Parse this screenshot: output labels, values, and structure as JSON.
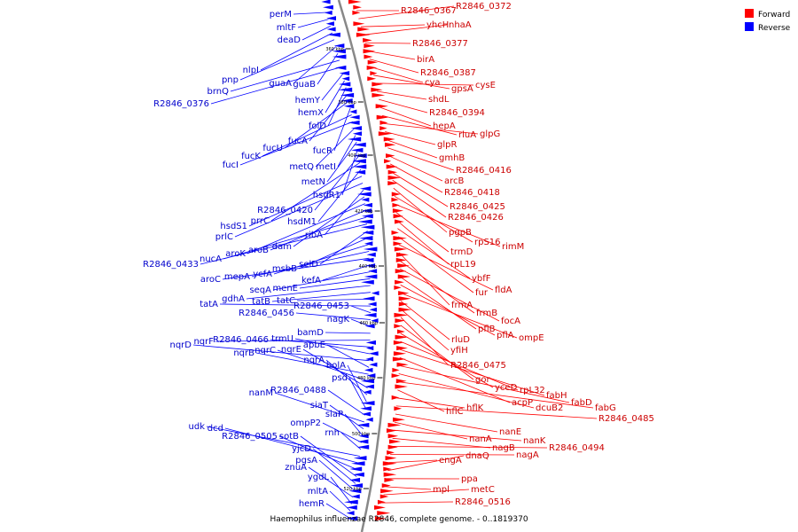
{
  "caption": "Haemophilus influenzae R2846, complete genome. - 0..1819370",
  "legend": [
    {
      "label": "Forward",
      "color": "#ff0000"
    },
    {
      "label": "Reverse",
      "color": "#0000ff"
    }
  ],
  "colors": {
    "forward": "#ff0000",
    "reverse": "#0000ff",
    "forward_text": "#cc0000",
    "reverse_text": "#0000cc",
    "backbone": "#888888"
  },
  "ticks": [
    "360 kbp",
    "380 kbp",
    "400 kbp",
    "420 kbp",
    "440 kbp",
    "460 kbp",
    "480 kbp",
    "500 kbp",
    "520 kbp"
  ],
  "forward_genes": [
    "R2846_0367",
    "R2846_0372",
    "yhcH",
    "nhaA",
    "R2846_0377",
    "birA",
    "R2846_0387",
    "cya",
    "gpsA",
    "cysE",
    "shdL",
    "R2846_0394",
    "hepA",
    "rluA",
    "glpG",
    "glpR",
    "gmhB",
    "R2846_0416",
    "arcB",
    "R2846_0418",
    "R2846_0425",
    "R2846_0426",
    "pgpB",
    "rpS16",
    "rimM",
    "trmD",
    "rpL19",
    "ybfF",
    "fur",
    "fldA",
    "frmA",
    "frmB",
    "focA",
    "pflB",
    "pflA",
    "ompE",
    "rluD",
    "yfiH",
    "R2846_0475",
    "gor",
    "yceD",
    "rpL32",
    "fabH",
    "acpP",
    "fabD",
    "dcuB2",
    "fabG",
    "hflC",
    "hflK",
    "R2846_0485",
    "nanE",
    "nanA",
    "nanK",
    "nagB",
    "R2846_0494",
    "nagA",
    "engA",
    "dnaQ",
    "ppa",
    "mpl",
    "metC",
    "R2846_0516"
  ],
  "reverse_genes": [
    "perM",
    "mltF",
    "deaD",
    "nlpI",
    "pnp",
    "guaA",
    "guaB",
    "brnQ",
    "R2846_0376",
    "hemY",
    "hemX",
    "folD",
    "fucA",
    "fucU",
    "fucR",
    "fucK",
    "fucI",
    "metQ",
    "metI",
    "metN",
    "hsdR1",
    "R2846_0420",
    "prrC",
    "hsdM1",
    "hsdS1",
    "prlC",
    "ribA",
    "dam",
    "aroK",
    "aroB",
    "nucA",
    "R2846_0433",
    "selD",
    "msbB",
    "ycfA",
    "mepA",
    "aroC",
    "kefA",
    "seqA",
    "menE",
    "gdhA",
    "tatB",
    "tatC",
    "tatA",
    "R2846_0453",
    "R2846_0456",
    "nagK",
    "bamD",
    "nqrF",
    "R2846_0466",
    "trmU",
    "nqrD",
    "apbE",
    "nqrB",
    "nqrC",
    "nqrE",
    "nqrA",
    "bolA",
    "psd",
    "R2846_0488",
    "nanM",
    "siaT",
    "siaP",
    "ompP2",
    "rnh",
    "udk",
    "dcd",
    "R2846_0505",
    "sotB",
    "yjcD",
    "pgsA",
    "znuA",
    "ygdL",
    "mltA",
    "hemR"
  ]
}
